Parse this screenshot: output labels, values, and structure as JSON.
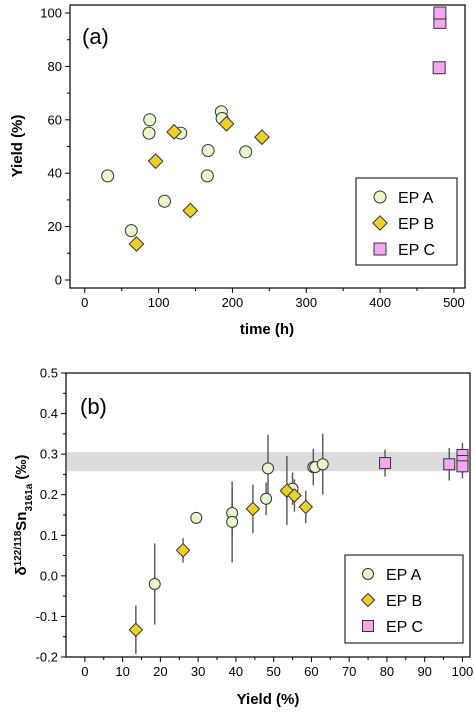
{
  "chart_data": [
    {
      "type": "scatter",
      "panel_label": "(a)",
      "xlabel": "time (h)",
      "ylabel": "Yield (%)",
      "xlim": [
        -20,
        515
      ],
      "ylim": [
        -3,
        103
      ],
      "xticks": [
        0,
        100,
        200,
        300,
        400,
        500
      ],
      "yticks": [
        0,
        20,
        40,
        60,
        80,
        100
      ],
      "xtick_labels": [
        "0",
        "100",
        "200",
        "300",
        "400",
        "500"
      ],
      "ytick_labels": [
        "0",
        "20",
        "40",
        "60",
        "80",
        "100"
      ],
      "grid": false,
      "legend_position": "bottom-right",
      "series": [
        {
          "name": "EP A",
          "marker": "circle",
          "color": "#e8f7cc",
          "points": [
            {
              "x": 31,
              "y": 39
            },
            {
              "x": 63,
              "y": 18.5
            },
            {
              "x": 87,
              "y": 55
            },
            {
              "x": 88,
              "y": 60
            },
            {
              "x": 108,
              "y": 29.5
            },
            {
              "x": 130,
              "y": 55
            },
            {
              "x": 166,
              "y": 39
            },
            {
              "x": 167,
              "y": 48.5
            },
            {
              "x": 185,
              "y": 63
            },
            {
              "x": 186,
              "y": 60.5
            },
            {
              "x": 218,
              "y": 48
            }
          ]
        },
        {
          "name": "EP B",
          "marker": "diamond",
          "color": "#ecd12a",
          "points": [
            {
              "x": 70,
              "y": 13.5
            },
            {
              "x": 96,
              "y": 44.5
            },
            {
              "x": 121,
              "y": 55.5
            },
            {
              "x": 143,
              "y": 26
            },
            {
              "x": 192,
              "y": 58.5
            },
            {
              "x": 240,
              "y": 53.5
            }
          ]
        },
        {
          "name": "EP C",
          "marker": "square",
          "color": "#f2a8f2",
          "points": [
            {
              "x": 480,
              "y": 79.5
            },
            {
              "x": 481,
              "y": 96.5
            },
            {
              "x": 481,
              "y": 100
            }
          ]
        }
      ]
    },
    {
      "type": "scatter",
      "panel_label": "(b)",
      "xlabel": "Yield (%)",
      "ylabel_parts": {
        "prefix": "δ",
        "sup": "122/118",
        "main": "Sn",
        "sub": "3161a",
        "suffix": " (‰)"
      },
      "xlim": [
        -5,
        102
      ],
      "ylim": [
        -0.2,
        0.5
      ],
      "xticks": [
        0,
        10,
        20,
        30,
        40,
        50,
        60,
        70,
        80,
        90,
        100
      ],
      "yticks": [
        -0.2,
        -0.1,
        0,
        0.1,
        0.2,
        0.3,
        0.4,
        0.5
      ],
      "xtick_labels": [
        "0",
        "10",
        "20",
        "30",
        "40",
        "50",
        "60",
        "70",
        "80",
        "90",
        "100"
      ],
      "ytick_labels": [
        "-0.2",
        "-0.1",
        "0.0",
        "0.1",
        "0.2",
        "0.3",
        "0.4",
        "0.5"
      ],
      "reference_band": [
        0.258,
        0.305
      ],
      "grid": false,
      "legend_position": "bottom-right",
      "series": [
        {
          "name": "EP A",
          "marker": "circle",
          "color": "#e8f7cc",
          "points": [
            {
              "x": 18.5,
              "y": -0.02,
              "err": 0.1
            },
            {
              "x": 29.5,
              "y": 0.143,
              "err": 0.0
            },
            {
              "x": 39,
              "y": 0.155,
              "err": 0.06
            },
            {
              "x": 39,
              "y": 0.133,
              "err": 0.1
            },
            {
              "x": 48,
              "y": 0.19,
              "err": 0.04
            },
            {
              "x": 48.5,
              "y": 0.265,
              "err": 0.083
            },
            {
              "x": 55,
              "y": 0.215,
              "err": 0.04
            },
            {
              "x": 60.5,
              "y": 0.268,
              "err": 0.045
            },
            {
              "x": 61,
              "y": 0.268,
              "err": 0.0
            },
            {
              "x": 63,
              "y": 0.275,
              "err": 0.075
            }
          ]
        },
        {
          "name": "EP B",
          "marker": "diamond",
          "color": "#ecd12a",
          "points": [
            {
              "x": 13.5,
              "y": -0.133,
              "err": 0.06
            },
            {
              "x": 26,
              "y": 0.063,
              "err": 0.03
            },
            {
              "x": 44.5,
              "y": 0.165,
              "err": 0.06
            },
            {
              "x": 53.5,
              "y": 0.21,
              "err": 0.085
            },
            {
              "x": 55.5,
              "y": 0.198,
              "err": 0.04
            },
            {
              "x": 58.5,
              "y": 0.17,
              "err": 0.04
            }
          ]
        },
        {
          "name": "EP C",
          "marker": "square",
          "color": "#f2a8f2",
          "points": [
            {
              "x": 79.5,
              "y": 0.278,
              "err": 0.033
            },
            {
              "x": 96.5,
              "y": 0.275,
              "err": 0.04
            },
            {
              "x": 100,
              "y": 0.298,
              "err": 0.03
            },
            {
              "x": 100,
              "y": 0.283,
              "err": 0.03
            },
            {
              "x": 100,
              "y": 0.27,
              "err": 0.03
            }
          ]
        }
      ]
    }
  ]
}
